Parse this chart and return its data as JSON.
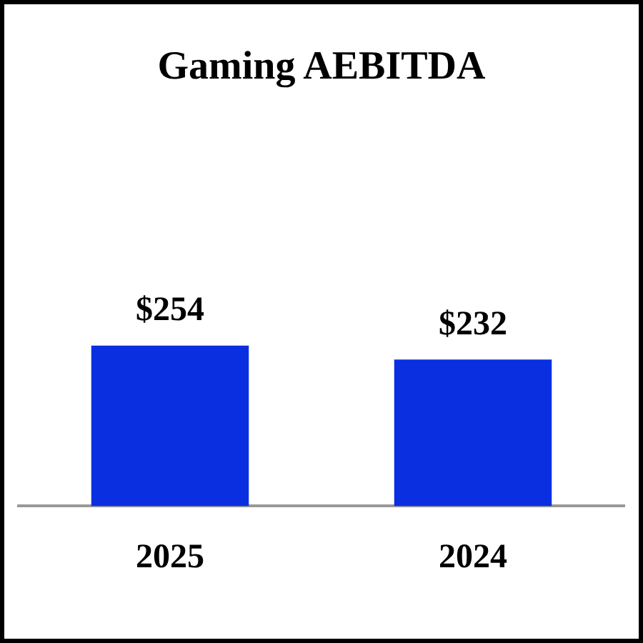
{
  "chart_data": {
    "type": "bar",
    "title": "Gaming AEBITDA",
    "categories": [
      "2025",
      "2024"
    ],
    "values": [
      254,
      232
    ],
    "value_labels": [
      "$254",
      "$232"
    ],
    "color": "#0a2fe0",
    "grid": false,
    "legend": false
  }
}
